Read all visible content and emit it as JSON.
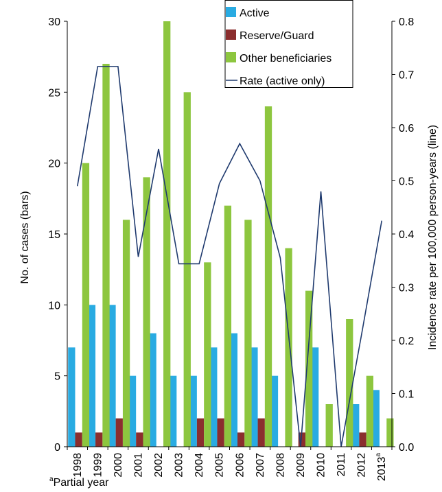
{
  "chart_data": {
    "type": "bar",
    "categories": [
      "1998",
      "1999",
      "2000",
      "2001",
      "2002",
      "2003",
      "2004",
      "2005",
      "2006",
      "2007",
      "2008",
      "2009",
      "2010",
      "2011",
      "2012",
      "2013"
    ],
    "category_superscripts": [
      "",
      "",
      "",
      "",
      "",
      "",
      "",
      "",
      "",
      "",
      "",
      "",
      "",
      "",
      "",
      "a"
    ],
    "series": [
      {
        "name": "Active",
        "color": "#29ABE2",
        "axis": "left",
        "values": [
          7,
          10,
          10,
          5,
          8,
          5,
          5,
          7,
          8,
          7,
          5,
          0,
          7,
          0,
          3,
          4
        ]
      },
      {
        "name": "Reserve/Guard",
        "color": "#8B2E2E",
        "axis": "left",
        "values": [
          1,
          1,
          2,
          1,
          0,
          0,
          2,
          2,
          1,
          2,
          0,
          1,
          0,
          0,
          1,
          0
        ]
      },
      {
        "name": "Other beneficiaries",
        "color": "#8DC63F",
        "axis": "left",
        "values": [
          20,
          27,
          16,
          19,
          30,
          25,
          13,
          17,
          16,
          24,
          14,
          11,
          3,
          9,
          5,
          2
        ]
      }
    ],
    "line_series": {
      "name": "Rate (active only)",
      "color": "#1F3A6E",
      "axis": "right",
      "values": [
        0.49,
        0.715,
        0.715,
        0.357,
        0.56,
        0.344,
        0.344,
        0.495,
        0.57,
        0.5,
        0.355,
        0.0,
        0.48,
        0.0,
        0.21,
        0.425
      ]
    },
    "ylabel": "No. of cases (bars)",
    "y2label": "Incidence rate per 100,000 person-years (line)",
    "ylim": [
      0,
      30
    ],
    "y2lim": [
      0,
      0.8
    ],
    "yticks": [
      "0",
      "5",
      "10",
      "15",
      "20",
      "25",
      "30"
    ],
    "y2ticks": [
      "0.0",
      "0.1",
      "0.2",
      "0.3",
      "0.4",
      "0.5",
      "0.6",
      "0.7",
      "0.8"
    ],
    "legend_position": "top-right",
    "grid": false,
    "footnote": {
      "superscript": "a",
      "text": "Partial year"
    }
  }
}
